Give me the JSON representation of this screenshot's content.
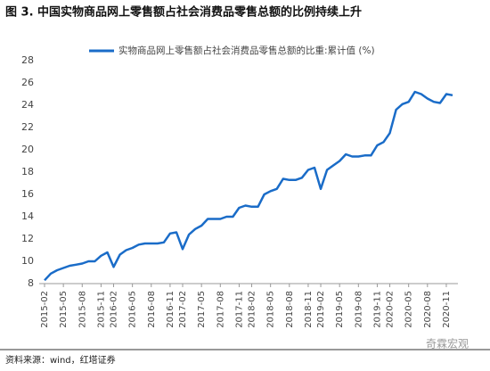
{
  "chart_data": {
    "type": "line",
    "title": "图 3. 中国实物商品网上零售额占社会消费品零售总额的比例持续上升",
    "source": "资料来源：wind，红塔证券",
    "watermark": "奇霖宏观",
    "categories": [
      "2015-02",
      null,
      null,
      "2015-05",
      null,
      null,
      "2015-08",
      null,
      null,
      "2015-11",
      null,
      "2016-02",
      null,
      null,
      "2016-05",
      null,
      null,
      "2016-08",
      null,
      null,
      "2016-11",
      null,
      "2017-02",
      null,
      null,
      "2017-05",
      null,
      null,
      "2017-08",
      null,
      null,
      "2017-11",
      null,
      "2018-02",
      null,
      null,
      "2018-05",
      null,
      null,
      "2018-08",
      null,
      null,
      "2018-11",
      null,
      "2019-02",
      null,
      null,
      "2019-05",
      null,
      null,
      "2019-08",
      null,
      null,
      "2019-11",
      null,
      "2020-02",
      null,
      null,
      "2020-05",
      null,
      null,
      "2020-08",
      null,
      null,
      "2020-11",
      null
    ],
    "series": [
      {
        "name": "实物商品网上零售额占社会消费品零售总额的比重:累计值 (%)",
        "color": "#1a6cc8",
        "values": [
          8.3,
          8.9,
          9.2,
          9.4,
          9.6,
          9.7,
          9.8,
          10.0,
          10.0,
          10.5,
          10.8,
          9.5,
          10.6,
          11.0,
          11.2,
          11.5,
          11.6,
          11.6,
          11.6,
          11.7,
          12.5,
          12.6,
          11.1,
          12.4,
          12.9,
          13.2,
          13.8,
          13.8,
          13.8,
          14.0,
          14.0,
          14.8,
          15.0,
          14.9,
          14.9,
          16.0,
          16.3,
          16.5,
          17.4,
          17.3,
          17.3,
          17.5,
          18.2,
          18.4,
          16.5,
          18.2,
          18.6,
          19.0,
          19.6,
          19.4,
          19.4,
          19.5,
          19.5,
          20.4,
          20.7,
          21.5,
          23.6,
          24.1,
          24.3,
          25.2,
          25.0,
          24.6,
          24.3,
          24.2,
          25.0,
          24.9
        ]
      }
    ],
    "ylim": [
      8,
      28
    ],
    "yticks": [
      8,
      10,
      12,
      14,
      16,
      18,
      20,
      22,
      24,
      26,
      28
    ],
    "grid": false
  }
}
